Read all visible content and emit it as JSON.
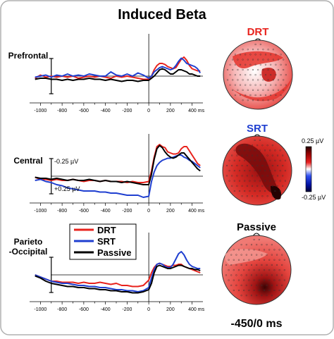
{
  "figure": {
    "title": "Induced Beta",
    "time_window": "-450/0 ms"
  },
  "colors": {
    "DRT": "#e8221c",
    "SRT": "#1f3fd0",
    "Passive": "#000000",
    "frame": "#b0b0b0"
  },
  "legend": {
    "entries": [
      "DRT",
      "SRT",
      "Passive"
    ]
  },
  "scale_labels": {
    "neg": "-0.25 µV",
    "pos": "+0.25 µV"
  },
  "colorbar": {
    "max_label": "0.25 µV",
    "min_label": "-0.25 µV",
    "max": 0.25,
    "min": -0.25
  },
  "topomaps": [
    {
      "label": "DRT",
      "label_color": "#e8221c"
    },
    {
      "label": "SRT",
      "label_color": "#1f3fd0"
    },
    {
      "label": "Passive",
      "label_color": "#000000"
    }
  ],
  "chart_data": [
    {
      "type": "line",
      "title": "Prefrontal",
      "xlabel": "",
      "ylabel": "",
      "xlim": [
        -1100,
        500
      ],
      "ylim": [
        -0.3,
        0.3
      ],
      "x_ticks": [
        "-1000",
        "-800",
        "-600",
        "-400",
        "-200",
        "0",
        "200",
        "400 ms"
      ],
      "x": [
        -1050,
        -1000,
        -950,
        -900,
        -850,
        -800,
        -750,
        -700,
        -650,
        -600,
        -550,
        -500,
        -450,
        -400,
        -350,
        -300,
        -250,
        -200,
        -150,
        -100,
        -50,
        0,
        25,
        50,
        75,
        100,
        125,
        150,
        175,
        200,
        225,
        250,
        275,
        300,
        325,
        350,
        375,
        400,
        425,
        450,
        475
      ],
      "series": [
        {
          "name": "DRT",
          "values": [
            -0.02,
            0.01,
            -0.01,
            0.0,
            -0.01,
            0.0,
            -0.01,
            0.0,
            -0.02,
            -0.01,
            0.0,
            -0.01,
            0.0,
            -0.01,
            -0.02,
            0.0,
            -0.01,
            0.0,
            -0.01,
            -0.02,
            -0.03,
            -0.03,
            0.0,
            0.06,
            0.1,
            0.12,
            0.12,
            0.11,
            0.09,
            0.08,
            0.07,
            0.08,
            0.12,
            0.16,
            0.18,
            0.15,
            0.1,
            0.07,
            0.06,
            0.05,
            0.05
          ]
        },
        {
          "name": "SRT",
          "values": [
            -0.01,
            0.0,
            0.01,
            -0.01,
            0.01,
            0.0,
            0.02,
            0.0,
            0.01,
            0.0,
            0.02,
            0.01,
            0.0,
            0.0,
            0.04,
            0.01,
            0.0,
            0.02,
            0.0,
            0.03,
            0.01,
            -0.02,
            0.0,
            0.04,
            0.06,
            0.08,
            0.09,
            0.08,
            0.07,
            0.06,
            0.07,
            0.1,
            0.14,
            0.17,
            0.15,
            0.12,
            0.11,
            0.1,
            0.09,
            0.07,
            0.03
          ]
        },
        {
          "name": "Passive",
          "values": [
            -0.03,
            -0.02,
            -0.02,
            -0.03,
            -0.03,
            -0.04,
            -0.03,
            -0.04,
            -0.03,
            -0.03,
            -0.02,
            -0.03,
            -0.03,
            -0.04,
            -0.03,
            -0.04,
            -0.05,
            -0.04,
            -0.04,
            -0.05,
            -0.04,
            -0.04,
            -0.02,
            0.0,
            0.03,
            0.06,
            0.07,
            0.06,
            0.04,
            0.02,
            0.02,
            0.04,
            0.06,
            0.06,
            0.05,
            0.04,
            0.02,
            0.02,
            0.01,
            0.0,
            0.0
          ]
        }
      ]
    },
    {
      "type": "line",
      "title": "Central",
      "xlabel": "",
      "ylabel": "",
      "xlim": [
        -1100,
        500
      ],
      "ylim": [
        -0.3,
        0.3
      ],
      "x_ticks": [
        "-1000",
        "-800",
        "-600",
        "-400",
        "-200",
        "0",
        "200",
        "400 ms"
      ],
      "x": [
        -1050,
        -1000,
        -950,
        -900,
        -850,
        -800,
        -750,
        -700,
        -650,
        -600,
        -550,
        -500,
        -450,
        -400,
        -350,
        -300,
        -250,
        -200,
        -150,
        -100,
        -50,
        0,
        25,
        50,
        75,
        100,
        125,
        150,
        175,
        200,
        225,
        250,
        275,
        300,
        325,
        350,
        375,
        400,
        425,
        450,
        475
      ],
      "series": [
        {
          "name": "DRT",
          "values": [
            -0.01,
            -0.03,
            -0.03,
            -0.04,
            -0.03,
            -0.04,
            -0.04,
            -0.03,
            -0.04,
            -0.05,
            -0.04,
            -0.04,
            -0.05,
            -0.04,
            -0.05,
            -0.05,
            -0.05,
            -0.06,
            -0.05,
            -0.06,
            -0.06,
            -0.05,
            0.05,
            0.18,
            0.28,
            0.3,
            0.28,
            0.27,
            0.23,
            0.22,
            0.21,
            0.21,
            0.22,
            0.26,
            0.28,
            0.28,
            0.24,
            0.2,
            0.16,
            0.12,
            0.1
          ]
        },
        {
          "name": "SRT",
          "values": [
            -0.04,
            -0.03,
            -0.05,
            -0.06,
            -0.08,
            -0.09,
            -0.11,
            -0.12,
            -0.13,
            -0.14,
            -0.14,
            -0.14,
            -0.15,
            -0.15,
            -0.16,
            -0.16,
            -0.17,
            -0.18,
            -0.18,
            -0.18,
            -0.2,
            -0.19,
            -0.05,
            0.04,
            0.1,
            0.13,
            0.15,
            0.16,
            0.17,
            0.17,
            0.18,
            0.19,
            0.2,
            0.2,
            0.18,
            0.17,
            0.15,
            0.14,
            0.12,
            0.1,
            0.08
          ]
        },
        {
          "name": "Passive",
          "values": [
            -0.01,
            -0.02,
            -0.02,
            -0.03,
            -0.02,
            -0.03,
            -0.04,
            -0.03,
            -0.04,
            -0.04,
            -0.03,
            -0.04,
            -0.05,
            -0.04,
            -0.05,
            -0.05,
            -0.06,
            -0.05,
            -0.06,
            -0.07,
            -0.08,
            -0.08,
            0.02,
            0.16,
            0.26,
            0.29,
            0.27,
            0.23,
            0.2,
            0.18,
            0.17,
            0.18,
            0.2,
            0.22,
            0.22,
            0.19,
            0.16,
            0.13,
            0.1,
            0.07,
            0.05
          ]
        }
      ]
    },
    {
      "type": "line",
      "title": "Parieto-Occipital",
      "xlabel": "",
      "ylabel": "",
      "xlim": [
        -1100,
        500
      ],
      "ylim": [
        -0.3,
        0.3
      ],
      "x_ticks": [
        "-1000",
        "-800",
        "-600",
        "-400",
        "-200",
        "0",
        "200",
        "400 ms"
      ],
      "x": [
        -1050,
        -1000,
        -950,
        -900,
        -850,
        -800,
        -750,
        -700,
        -650,
        -600,
        -550,
        -500,
        -450,
        -400,
        -350,
        -300,
        -250,
        -200,
        -150,
        -100,
        -50,
        0,
        25,
        50,
        75,
        100,
        125,
        150,
        175,
        200,
        225,
        250,
        275,
        300,
        325,
        350,
        375,
        400,
        425,
        450,
        475
      ],
      "series": [
        {
          "name": "DRT",
          "values": [
            0.0,
            -0.02,
            -0.04,
            -0.06,
            -0.06,
            -0.07,
            -0.07,
            -0.07,
            -0.08,
            -0.07,
            -0.08,
            -0.08,
            -0.07,
            -0.08,
            -0.09,
            -0.08,
            -0.1,
            -0.1,
            -0.11,
            -0.11,
            -0.1,
            -0.05,
            0.02,
            0.07,
            0.1,
            0.11,
            0.1,
            0.09,
            0.08,
            0.08,
            0.09,
            0.09,
            0.1,
            0.1,
            0.08,
            0.07,
            0.06,
            0.05,
            0.04,
            0.03,
            0.02
          ]
        },
        {
          "name": "SRT",
          "values": [
            0.0,
            -0.02,
            -0.04,
            -0.06,
            -0.07,
            -0.08,
            -0.08,
            -0.09,
            -0.1,
            -0.1,
            -0.11,
            -0.11,
            -0.12,
            -0.12,
            -0.13,
            -0.14,
            -0.14,
            -0.15,
            -0.15,
            -0.16,
            -0.15,
            -0.12,
            -0.03,
            0.05,
            0.1,
            0.11,
            0.1,
            0.08,
            0.07,
            0.07,
            0.1,
            0.15,
            0.2,
            0.22,
            0.19,
            0.14,
            0.1,
            0.08,
            0.07,
            0.06,
            0.06
          ]
        },
        {
          "name": "Passive",
          "values": [
            -0.01,
            -0.03,
            -0.06,
            -0.08,
            -0.09,
            -0.1,
            -0.11,
            -0.11,
            -0.12,
            -0.12,
            -0.13,
            -0.13,
            -0.14,
            -0.14,
            -0.15,
            -0.15,
            -0.16,
            -0.16,
            -0.17,
            -0.17,
            -0.16,
            -0.14,
            -0.08,
            0.02,
            0.08,
            0.09,
            0.08,
            0.07,
            0.06,
            0.06,
            0.07,
            0.08,
            0.09,
            0.09,
            0.08,
            0.07,
            0.06,
            0.06,
            0.05,
            0.05,
            0.04
          ]
        }
      ]
    }
  ]
}
